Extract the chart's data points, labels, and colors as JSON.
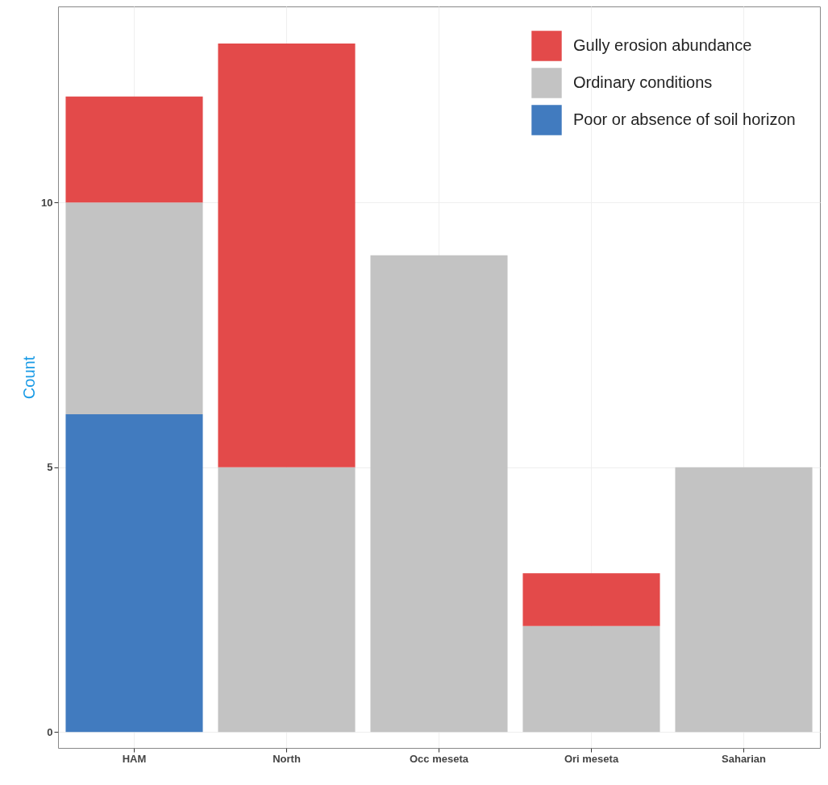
{
  "chart_data": {
    "type": "bar",
    "stacked": true,
    "ylabel": "Count",
    "categories": [
      "HAM",
      "North",
      "Occ meseta",
      "Ori meseta",
      "Saharian"
    ],
    "series": [
      {
        "name": "Poor or absence of soil horizon",
        "color": "#417bbf",
        "values": [
          6,
          0,
          0,
          0,
          0
        ]
      },
      {
        "name": "Ordinary conditions",
        "color": "#c3c3c3",
        "values": [
          4,
          5,
          9,
          2,
          5
        ]
      },
      {
        "name": "Gully erosion abundance",
        "color": "#e34a4a",
        "values": [
          2,
          8,
          0,
          1,
          0
        ]
      }
    ],
    "ylim": [
      -0.3,
      13.7
    ],
    "yticks": [
      0,
      5,
      10
    ],
    "grid": true,
    "legend": "top right"
  }
}
